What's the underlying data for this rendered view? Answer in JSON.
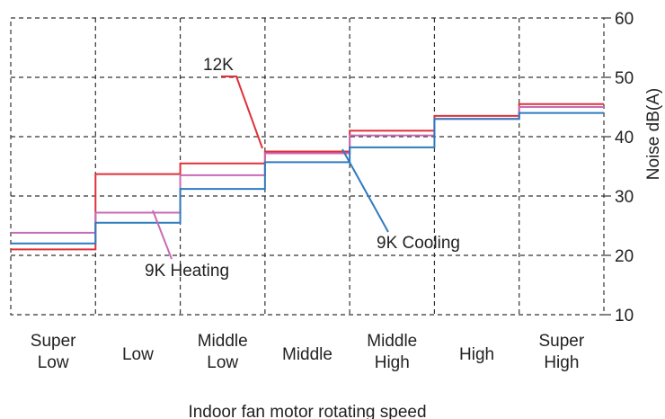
{
  "chart_data": {
    "type": "line",
    "step": true,
    "categories": [
      [
        "Super",
        "Low"
      ],
      [
        "Low"
      ],
      [
        "Middle",
        "Low"
      ],
      [
        "Middle"
      ],
      [
        "Middle",
        "High"
      ],
      [
        "High"
      ],
      [
        "Super",
        "High"
      ]
    ],
    "xlabel": "Indoor fan motor rotating speed",
    "ylabel": "Noise dB(A)",
    "ylim": [
      10,
      60
    ],
    "yticks": [
      10,
      20,
      30,
      40,
      50,
      60
    ],
    "grid": true,
    "series": [
      {
        "name": "12K",
        "color": "#e0303a",
        "values": [
          21,
          33.7,
          35.5,
          37.5,
          41,
          43.5,
          45.5
        ]
      },
      {
        "name": "",
        "color": "#c86bb4",
        "values": [
          23.8,
          27.2,
          33.5,
          37.2,
          40.2,
          43,
          45
        ]
      },
      {
        "name": "",
        "color": "#2f7bbf",
        "values": [
          22,
          25.5,
          31.2,
          35.7,
          38.2,
          43,
          44
        ]
      }
    ],
    "annotations": [
      {
        "text": "12K"
      },
      {
        "text": "9K Heating"
      },
      {
        "text": "9K Cooling"
      }
    ]
  }
}
